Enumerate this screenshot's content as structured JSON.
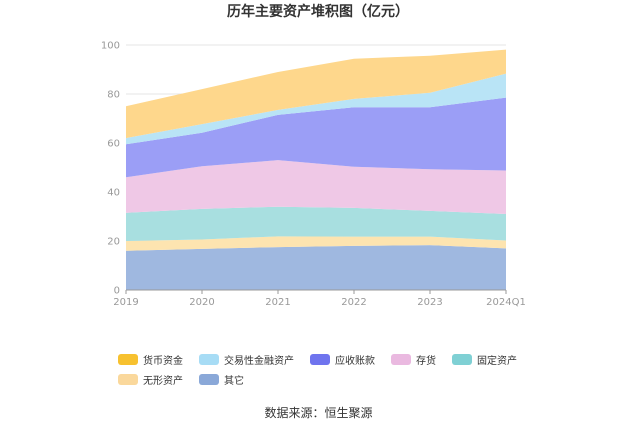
{
  "chart_data": {
    "type": "area",
    "stacked": true,
    "title": "历年主要资产堆积图（亿元）",
    "categories": [
      "2019",
      "2020",
      "2021",
      "2022",
      "2023",
      "2024Q1"
    ],
    "ylim": [
      0,
      100
    ],
    "yticks": [
      0,
      20,
      40,
      60,
      80,
      100
    ],
    "grid": true,
    "legend_position": "bottom",
    "series": [
      {
        "name": "其它",
        "color": "#9fb8e0",
        "values": [
          16,
          16.8,
          17.5,
          18,
          18.3,
          17
        ]
      },
      {
        "name": "无形资产",
        "color": "#fde4b0",
        "values": [
          4,
          3.8,
          4.4,
          3.8,
          3.5,
          3.2
        ]
      },
      {
        "name": "固定资产",
        "color": "#a8dfe0",
        "values": [
          11.5,
          12.5,
          12.1,
          11.7,
          10.5,
          10.8
        ]
      },
      {
        "name": "存货",
        "color": "#efc8e6",
        "values": [
          14.5,
          17.4,
          19,
          16.8,
          17,
          17.8
        ]
      },
      {
        "name": "应收账款",
        "color": "#9b9ef6",
        "values": [
          13.5,
          13.7,
          18.5,
          24.3,
          25.3,
          29.7
        ]
      },
      {
        "name": "交易性金融资产",
        "color": "#b9e4f6",
        "values": [
          2.5,
          3.5,
          2,
          3.4,
          5.9,
          9.8
        ]
      },
      {
        "name": "货币资金",
        "color": "#fed78c",
        "values": [
          13,
          14.3,
          15.5,
          16.4,
          15.1,
          9.8
        ]
      }
    ],
    "legend_order": [
      "货币资金",
      "交易性金融资产",
      "应收账款",
      "存货",
      "固定资产",
      "无形资产",
      "其它"
    ],
    "legend_colors": {
      "货币资金": "#f7c12f",
      "交易性金融资产": "#a7dcf5",
      "应收账款": "#6f74ee",
      "存货": "#eab9e0",
      "固定资产": "#7fd0d4",
      "无形资产": "#fad89c",
      "其它": "#8aa8d8"
    }
  },
  "source_text": "数据来源：恒生聚源"
}
